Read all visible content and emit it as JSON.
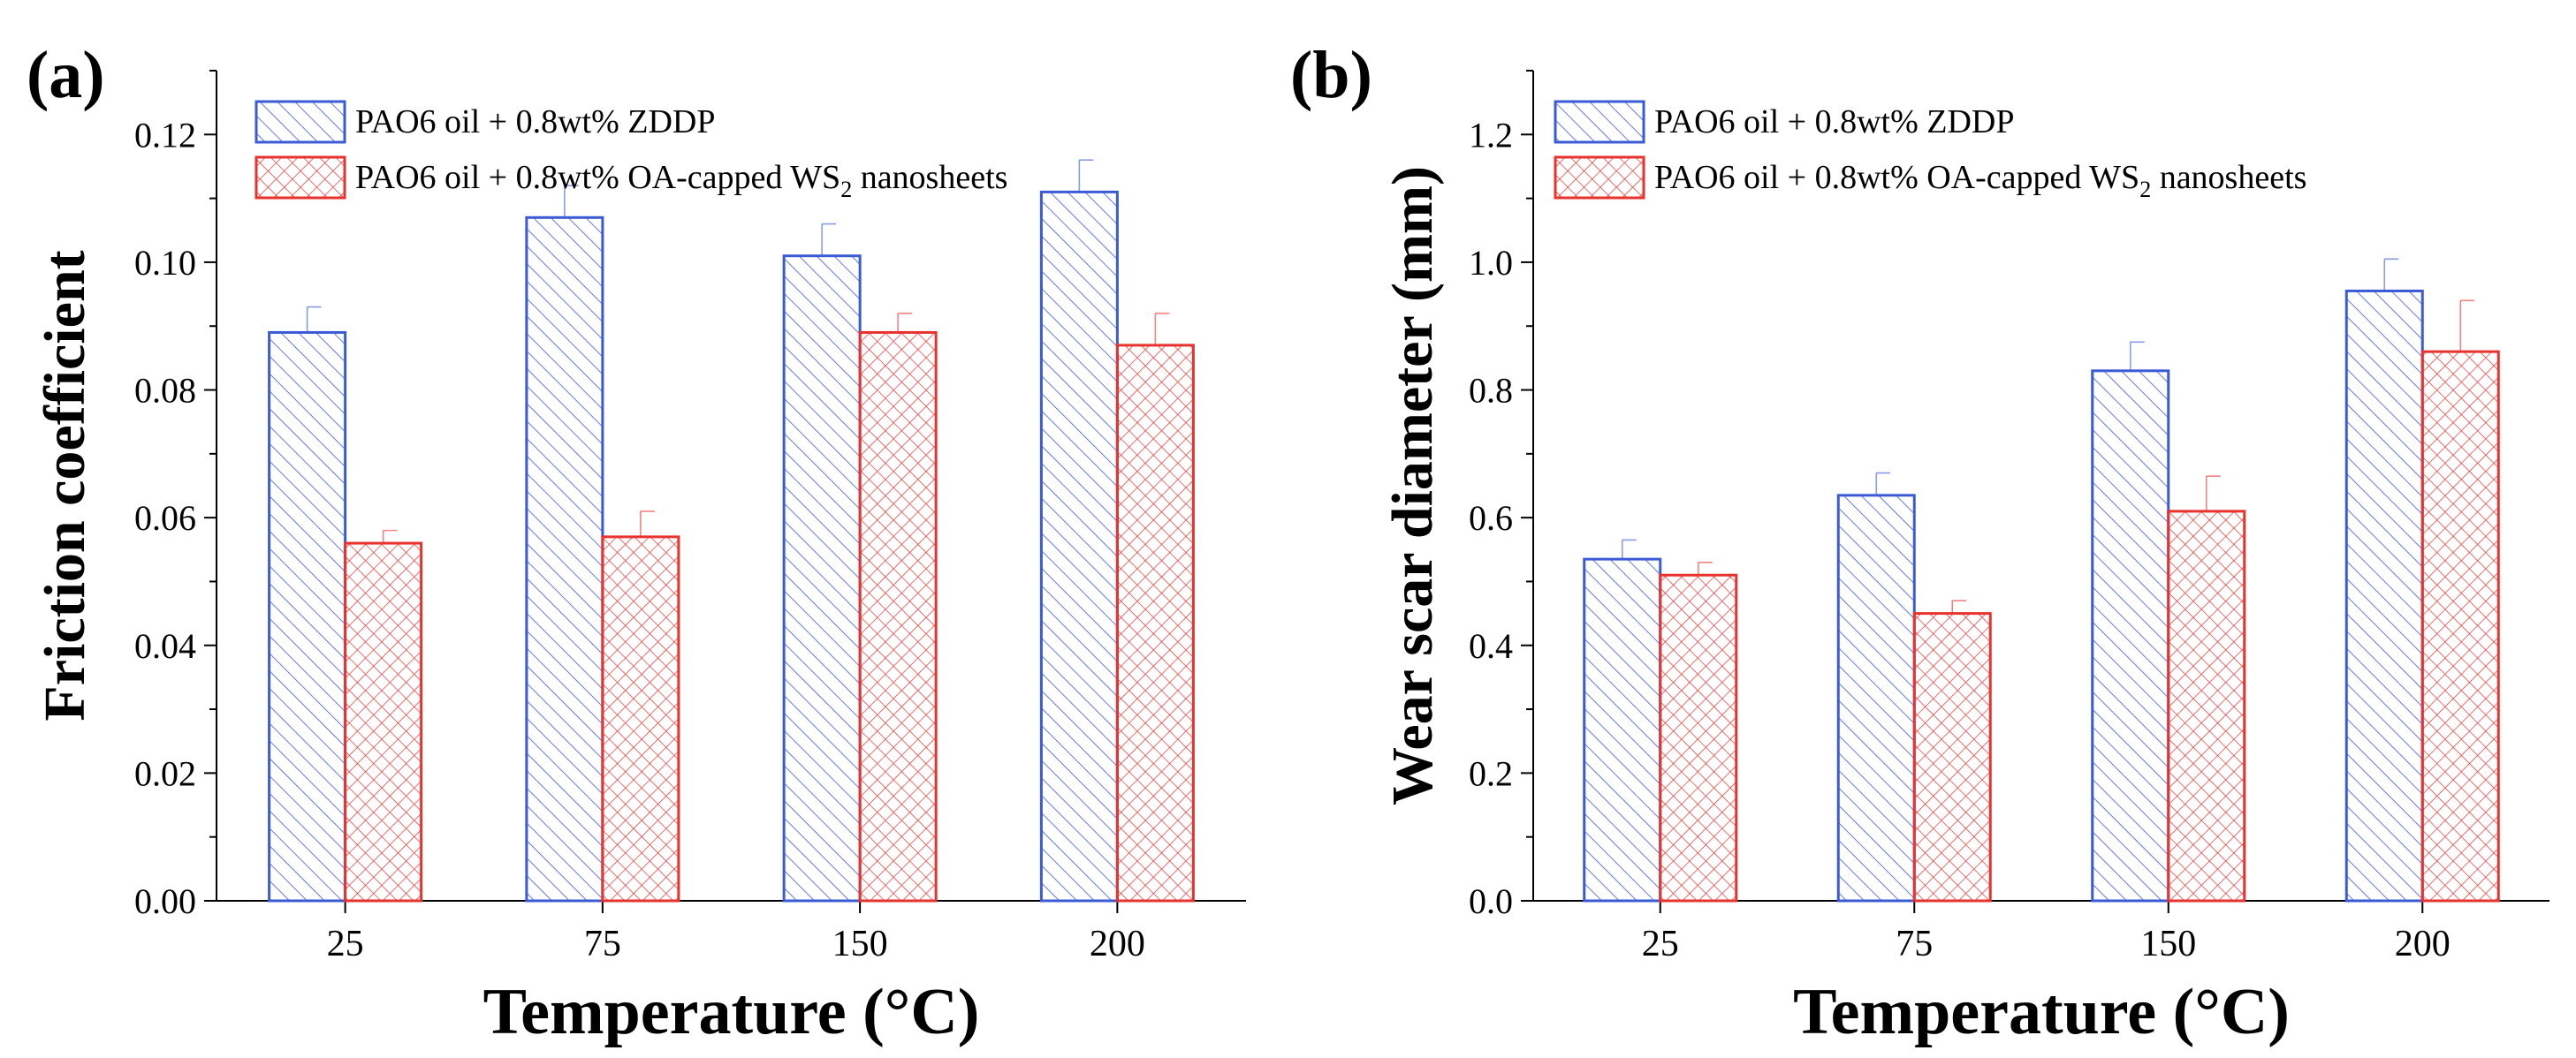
{
  "chart_data": [
    {
      "panel": "(a)",
      "type": "bar",
      "categories": [
        "25",
        "75",
        "150",
        "200"
      ],
      "xlabel": "Temperature (°C)",
      "ylabel": "Friction coefficient",
      "ylim": [
        0,
        0.13
      ],
      "yticks": [
        "0.00",
        "0.02",
        "0.04",
        "0.06",
        "0.08",
        "0.10",
        "0.12"
      ],
      "ytick_values": [
        0,
        0.02,
        0.04,
        0.06,
        0.08,
        0.1,
        0.12
      ],
      "legend_position": "top-left",
      "series": [
        {
          "name": "PAO6 oil + 0.8wt% ZDDP",
          "values": [
            0.089,
            0.107,
            0.101,
            0.111
          ],
          "errors": [
            0.004,
            0.005,
            0.005,
            0.005
          ],
          "color": "#3b5bd6",
          "pattern": "diagonal"
        },
        {
          "name": "PAO6 oil + 0.8wt% OA-capped WS",
          "name_sub": "2",
          "name_suffix": " nanosheets",
          "values": [
            0.056,
            0.057,
            0.089,
            0.087
          ],
          "errors": [
            0.002,
            0.004,
            0.003,
            0.005
          ],
          "color": "#e8322e",
          "pattern": "crosshatch"
        }
      ]
    },
    {
      "panel": "(b)",
      "type": "bar",
      "categories": [
        "25",
        "75",
        "150",
        "200"
      ],
      "xlabel": "Temperature (°C)",
      "ylabel": "Wear scar diameter (mm)",
      "ylim": [
        0,
        1.3
      ],
      "yticks": [
        "0.0",
        "0.2",
        "0.4",
        "0.6",
        "0.8",
        "1.0",
        "1.2"
      ],
      "ytick_values": [
        0,
        0.2,
        0.4,
        0.6,
        0.8,
        1.0,
        1.2
      ],
      "legend_position": "top-left",
      "series": [
        {
          "name": "PAO6 oil + 0.8wt% ZDDP",
          "values": [
            0.535,
            0.635,
            0.83,
            0.955
          ],
          "errors": [
            0.03,
            0.035,
            0.045,
            0.05
          ],
          "color": "#3b5bd6",
          "pattern": "diagonal"
        },
        {
          "name": "PAO6 oil + 0.8wt% OA-capped WS",
          "name_sub": "2",
          "name_suffix": " nanosheets",
          "values": [
            0.51,
            0.45,
            0.61,
            0.86
          ],
          "errors": [
            0.02,
            0.02,
            0.055,
            0.08
          ],
          "color": "#e8322e",
          "pattern": "crosshatch"
        }
      ]
    }
  ]
}
